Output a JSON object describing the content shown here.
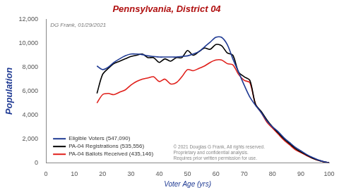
{
  "chart_data": {
    "type": "line",
    "title": "Pennsylvania, District 04",
    "x_label": "Voter Age (yrs)",
    "y_label": "Population",
    "annotations": [
      "DG Frank, 01/29/2021",
      "© 2021 Douglas G Frank, All rights reserved.",
      "Proprietary and confidential analysis.",
      "Requires prior written permission for use."
    ],
    "x": [
      18,
      20,
      22,
      24,
      26,
      28,
      30,
      32,
      34,
      36,
      38,
      40,
      42,
      44,
      46,
      48,
      50,
      52,
      54,
      56,
      58,
      60,
      62,
      64,
      66,
      68,
      70,
      72,
      74,
      76,
      78,
      80,
      82,
      84,
      86,
      88,
      90,
      92,
      94,
      96,
      98,
      100
    ],
    "series": [
      {
        "name": "Eligible Voters (547,090)",
        "color": "#1f3a93",
        "values": [
          8100,
          7800,
          8000,
          8400,
          8700,
          8950,
          9100,
          9100,
          9050,
          8950,
          8900,
          8850,
          8850,
          8850,
          8850,
          8900,
          8950,
          9100,
          9300,
          9700,
          10100,
          10500,
          10500,
          9900,
          8700,
          7600,
          6500,
          5500,
          4800,
          4200,
          3500,
          3000,
          2600,
          2100,
          1700,
          1300,
          1000,
          700,
          450,
          250,
          100,
          0
        ]
      },
      {
        "name": "PA-04 Registrations (535,556)",
        "color": "#000000",
        "values": [
          5800,
          7400,
          7900,
          8300,
          8500,
          8700,
          8900,
          9000,
          9100,
          8800,
          8800,
          8400,
          8700,
          8500,
          8800,
          8800,
          9400,
          9000,
          9300,
          9600,
          9500,
          9900,
          9800,
          9200,
          9000,
          7600,
          7200,
          6900,
          4900,
          4300,
          3600,
          3000,
          2500,
          2000,
          1600,
          1200,
          900,
          650,
          400,
          220,
          90,
          0
        ]
      },
      {
        "name": "PA-04 Ballots Received (435,146)",
        "color": "#e0201b",
        "values": [
          5000,
          5700,
          5800,
          5700,
          5900,
          6100,
          6500,
          6800,
          7000,
          7100,
          7200,
          6800,
          7000,
          6600,
          6700,
          7200,
          7800,
          7700,
          7900,
          8100,
          8400,
          8600,
          8600,
          8300,
          8200,
          7400,
          6900,
          6700,
          4900,
          4200,
          3400,
          2900,
          2400,
          1900,
          1500,
          1100,
          850,
          600,
          380,
          200,
          80,
          0
        ]
      }
    ],
    "xlim": [
      0,
      100
    ],
    "xticks": [
      0,
      10,
      20,
      30,
      40,
      50,
      60,
      70,
      80,
      90,
      100
    ],
    "ylim": [
      0,
      12000
    ],
    "yticks": [
      0,
      {
        "value": 2000,
        "label": "2,000"
      },
      {
        "value": 4000,
        "label": "4,000"
      },
      {
        "value": 6000,
        "label": "6,000"
      },
      {
        "value": 8000,
        "label": "8,000"
      },
      {
        "value": 10000,
        "label": "10,000"
      },
      {
        "value": 12000,
        "label": "12,000"
      }
    ],
    "grid": false,
    "legend": "lower left"
  }
}
